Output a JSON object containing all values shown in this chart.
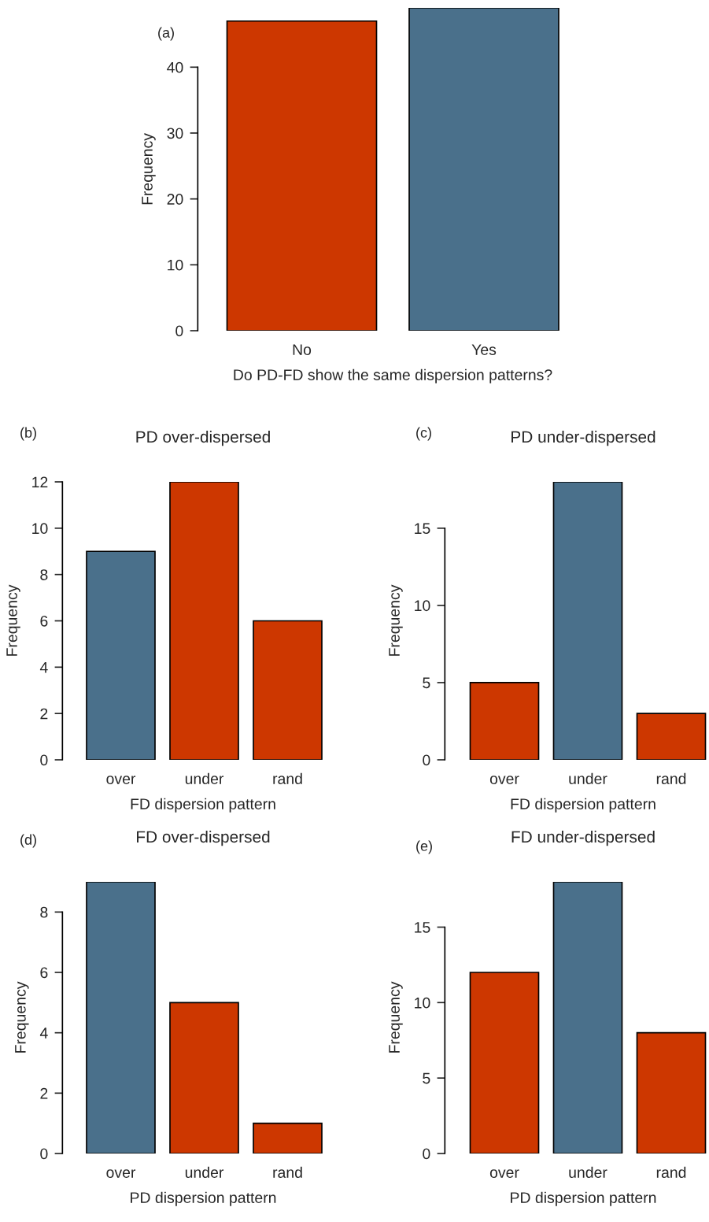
{
  "chart_data": [
    {
      "type": "bar",
      "categories": [
        "No",
        "Yes"
      ],
      "values": [
        47,
        49
      ],
      "colors": [
        "#cd3700",
        "#4a708b"
      ],
      "ylim": [
        0,
        49
      ],
      "yticks": [
        0,
        10,
        20,
        30,
        40
      ],
      "ylabel": "Frequency",
      "xlabel": "Do PD-FD show the same dispersion patterns?",
      "annotations": [
        "(a)"
      ]
    },
    {
      "type": "bar",
      "title": "PD over-dispersed",
      "categories": [
        "over",
        "under",
        "rand"
      ],
      "values": [
        9,
        12,
        6
      ],
      "colors": [
        "#4a708b",
        "#cd3700",
        "#cd3700"
      ],
      "ylim": [
        0,
        12
      ],
      "yticks": [
        0,
        2,
        4,
        6,
        8,
        10,
        12
      ],
      "ylabel": "Frequency",
      "xlabel": "FD dispersion pattern",
      "annotations": [
        "(b)"
      ]
    },
    {
      "type": "bar",
      "title": "PD under-dispersed",
      "categories": [
        "over",
        "under",
        "rand"
      ],
      "values": [
        5,
        18,
        3
      ],
      "colors": [
        "#cd3700",
        "#4a708b",
        "#cd3700"
      ],
      "ylim": [
        0,
        18
      ],
      "yticks": [
        0,
        5,
        10,
        15
      ],
      "ylabel": "Frequency",
      "xlabel": "FD dispersion pattern",
      "annotations": [
        "(c)"
      ]
    },
    {
      "type": "bar",
      "title": "FD over-dispersed",
      "categories": [
        "over",
        "under",
        "rand"
      ],
      "values": [
        9,
        5,
        1
      ],
      "colors": [
        "#4a708b",
        "#cd3700",
        "#cd3700"
      ],
      "ylim": [
        0,
        9
      ],
      "yticks": [
        0,
        2,
        4,
        6,
        8
      ],
      "ylabel": "Frequency",
      "xlabel": "PD dispersion pattern",
      "annotations": [
        "(d)"
      ]
    },
    {
      "type": "bar",
      "title": "FD under-dispersed",
      "categories": [
        "over",
        "under",
        "rand"
      ],
      "values": [
        12,
        18,
        8
      ],
      "colors": [
        "#cd3700",
        "#4a708b",
        "#cd3700"
      ],
      "ylim": [
        0,
        18
      ],
      "yticks": [
        0,
        5,
        10,
        15
      ],
      "ylabel": "Frequency",
      "xlabel": "PD dispersion pattern",
      "annotations": [
        "(e)"
      ]
    }
  ]
}
